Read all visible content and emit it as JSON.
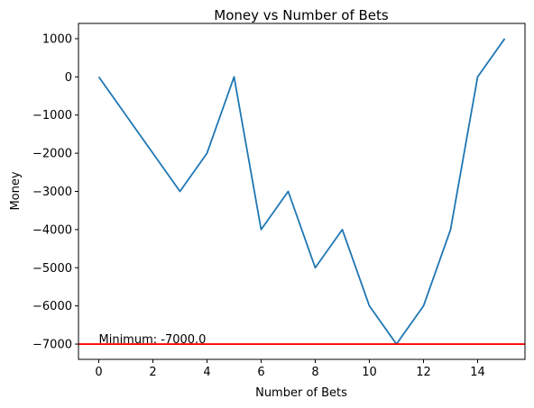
{
  "chart_data": {
    "type": "line",
    "title": "Money vs Number of Bets",
    "xlabel": "Number of Bets",
    "ylabel": "Money",
    "xlim": [
      -0.75,
      15.75
    ],
    "ylim": [
      -7400,
      1400
    ],
    "x_ticks": [
      0,
      2,
      4,
      6,
      8,
      10,
      12,
      14
    ],
    "y_ticks": [
      1000,
      0,
      -1000,
      -2000,
      -3000,
      -4000,
      -5000,
      -6000,
      -7000
    ],
    "series": [
      {
        "color": "#1f77b4",
        "x": [
          0,
          1,
          2,
          3,
          4,
          5,
          6,
          7,
          8,
          9,
          10,
          11,
          12,
          13,
          14,
          15
        ],
        "y": [
          0,
          -1000,
          -2000,
          -3000,
          -2000,
          0,
          -4000,
          -3000,
          -5000,
          -4000,
          -6000,
          -7000,
          -6000,
          -4000,
          0,
          1000
        ]
      }
    ],
    "reference_line": {
      "y": -7000,
      "color": "#ff0000"
    },
    "annotation": {
      "text": "Minimum: -7000.0",
      "x": 0,
      "y": -7000
    },
    "grid": false
  }
}
